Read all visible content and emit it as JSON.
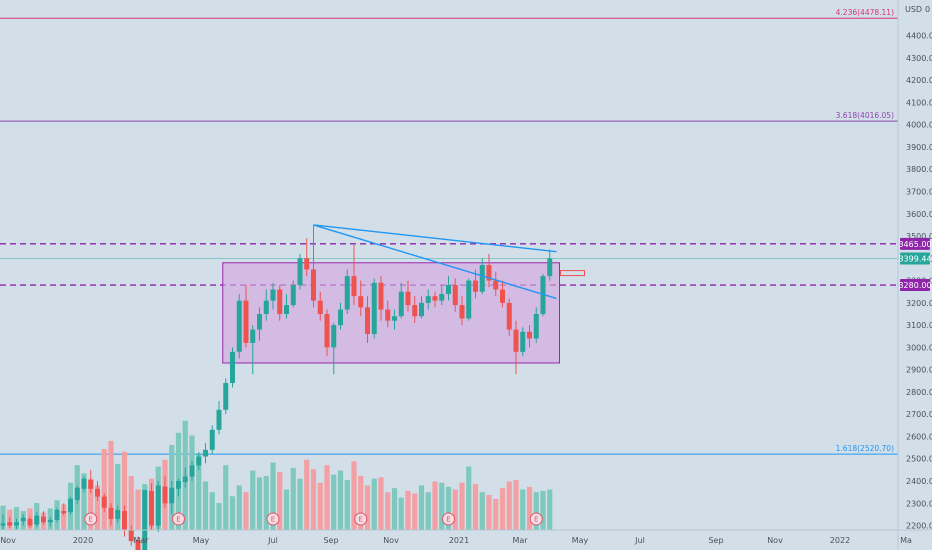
{
  "axis": {
    "currency": "USD",
    "y_ticks": [
      2200,
      2300,
      2400,
      2500,
      2600,
      2700,
      2800,
      2900,
      3000,
      3100,
      3200,
      3300,
      3400,
      3500,
      3600,
      3700,
      3800,
      3900,
      4000,
      4100,
      4200,
      4300,
      4400
    ],
    "x_labels": [
      "Nov",
      "2020",
      "Mar",
      "May",
      "Jul",
      "Sep",
      "Nov",
      "2021",
      "Mar",
      "May",
      "Jul",
      "Sep",
      "Nov",
      "2022",
      "Ma"
    ]
  },
  "colors": {
    "up": "#26a69a",
    "down": "#ef5350",
    "vol_up": "#7fc8bd",
    "vol_down": "#f2a0a4",
    "fib_4236": "#d6357a",
    "fib_3618": "#8e44ad",
    "fib_1618": "#2196f3",
    "level": "#8e24aa",
    "trend": "#2196f3",
    "box_fill": "#d4a8e0",
    "box_stroke": "#9c27b0",
    "price_tag": "#26a69a"
  },
  "chart_data": {
    "type": "candlestick",
    "timeframe": "weekly",
    "ylim": [
      2180,
      4560
    ],
    "candles": [
      {
        "o": 2200,
        "h": 2250,
        "l": 2180,
        "c": 2210
      },
      {
        "o": 2215,
        "h": 2240,
        "l": 2190,
        "c": 2200
      },
      {
        "o": 2200,
        "h": 2230,
        "l": 2185,
        "c": 2215
      },
      {
        "o": 2220,
        "h": 2250,
        "l": 2200,
        "c": 2235
      },
      {
        "o": 2230,
        "h": 2240,
        "l": 2190,
        "c": 2200
      },
      {
        "o": 2205,
        "h": 2260,
        "l": 2195,
        "c": 2245
      },
      {
        "o": 2240,
        "h": 2265,
        "l": 2205,
        "c": 2215
      },
      {
        "o": 2215,
        "h": 2240,
        "l": 2195,
        "c": 2225
      },
      {
        "o": 2225,
        "h": 2280,
        "l": 2215,
        "c": 2270
      },
      {
        "o": 2265,
        "h": 2300,
        "l": 2245,
        "c": 2255
      },
      {
        "o": 2260,
        "h": 2330,
        "l": 2250,
        "c": 2320
      },
      {
        "o": 2315,
        "h": 2380,
        "l": 2295,
        "c": 2370
      },
      {
        "o": 2365,
        "h": 2420,
        "l": 2350,
        "c": 2410
      },
      {
        "o": 2405,
        "h": 2450,
        "l": 2345,
        "c": 2365
      },
      {
        "o": 2365,
        "h": 2400,
        "l": 2310,
        "c": 2330
      },
      {
        "o": 2330,
        "h": 2345,
        "l": 2260,
        "c": 2280
      },
      {
        "o": 2280,
        "h": 2300,
        "l": 2200,
        "c": 2230
      },
      {
        "o": 2230,
        "h": 2290,
        "l": 2210,
        "c": 2270
      },
      {
        "o": 2265,
        "h": 2290,
        "l": 2150,
        "c": 2180
      },
      {
        "o": 2180,
        "h": 2200,
        "l": 2110,
        "c": 2130
      },
      {
        "o": 2135,
        "h": 2150,
        "l": 2050,
        "c": 2080
      },
      {
        "o": 2080,
        "h": 2360,
        "l": 2060,
        "c": 2360
      },
      {
        "o": 2355,
        "h": 2390,
        "l": 2180,
        "c": 2200
      },
      {
        "o": 2200,
        "h": 2400,
        "l": 2170,
        "c": 2380
      },
      {
        "o": 2375,
        "h": 2420,
        "l": 2280,
        "c": 2300
      },
      {
        "o": 2300,
        "h": 2400,
        "l": 2250,
        "c": 2370
      },
      {
        "o": 2365,
        "h": 2410,
        "l": 2330,
        "c": 2400
      },
      {
        "o": 2395,
        "h": 2460,
        "l": 2370,
        "c": 2420
      },
      {
        "o": 2420,
        "h": 2490,
        "l": 2400,
        "c": 2470
      },
      {
        "o": 2470,
        "h": 2530,
        "l": 2450,
        "c": 2510
      },
      {
        "o": 2510,
        "h": 2570,
        "l": 2480,
        "c": 2540
      },
      {
        "o": 2540,
        "h": 2650,
        "l": 2520,
        "c": 2630
      },
      {
        "o": 2630,
        "h": 2760,
        "l": 2610,
        "c": 2720
      },
      {
        "o": 2720,
        "h": 2860,
        "l": 2700,
        "c": 2840
      },
      {
        "o": 2840,
        "h": 3000,
        "l": 2820,
        "c": 2980
      },
      {
        "o": 2980,
        "h": 3240,
        "l": 2950,
        "c": 3210
      },
      {
        "o": 3210,
        "h": 3280,
        "l": 3000,
        "c": 3020
      },
      {
        "o": 3020,
        "h": 3100,
        "l": 2880,
        "c": 3080
      },
      {
        "o": 3080,
        "h": 3180,
        "l": 3030,
        "c": 3150
      },
      {
        "o": 3150,
        "h": 3260,
        "l": 3120,
        "c": 3210
      },
      {
        "o": 3210,
        "h": 3290,
        "l": 3170,
        "c": 3260
      },
      {
        "o": 3260,
        "h": 3280,
        "l": 3120,
        "c": 3150
      },
      {
        "o": 3150,
        "h": 3240,
        "l": 3130,
        "c": 3190
      },
      {
        "o": 3190,
        "h": 3300,
        "l": 3180,
        "c": 3280
      },
      {
        "o": 3280,
        "h": 3420,
        "l": 3260,
        "c": 3400
      },
      {
        "o": 3400,
        "h": 3490,
        "l": 3320,
        "c": 3350
      },
      {
        "o": 3350,
        "h": 3550,
        "l": 3180,
        "c": 3210
      },
      {
        "o": 3210,
        "h": 3250,
        "l": 3120,
        "c": 3150
      },
      {
        "o": 3150,
        "h": 3170,
        "l": 2960,
        "c": 3000
      },
      {
        "o": 3000,
        "h": 3110,
        "l": 2880,
        "c": 3100
      },
      {
        "o": 3100,
        "h": 3200,
        "l": 3080,
        "c": 3170
      },
      {
        "o": 3170,
        "h": 3350,
        "l": 3150,
        "c": 3320
      },
      {
        "o": 3320,
        "h": 3460,
        "l": 3190,
        "c": 3230
      },
      {
        "o": 3230,
        "h": 3300,
        "l": 3140,
        "c": 3180
      },
      {
        "o": 3180,
        "h": 3230,
        "l": 3020,
        "c": 3060
      },
      {
        "o": 3060,
        "h": 3310,
        "l": 3040,
        "c": 3290
      },
      {
        "o": 3290,
        "h": 3320,
        "l": 3120,
        "c": 3170
      },
      {
        "o": 3170,
        "h": 3210,
        "l": 3090,
        "c": 3120
      },
      {
        "o": 3120,
        "h": 3170,
        "l": 3080,
        "c": 3140
      },
      {
        "o": 3140,
        "h": 3290,
        "l": 3130,
        "c": 3250
      },
      {
        "o": 3250,
        "h": 3300,
        "l": 3160,
        "c": 3190
      },
      {
        "o": 3190,
        "h": 3230,
        "l": 3110,
        "c": 3140
      },
      {
        "o": 3140,
        "h": 3230,
        "l": 3130,
        "c": 3200
      },
      {
        "o": 3200,
        "h": 3260,
        "l": 3170,
        "c": 3230
      },
      {
        "o": 3230,
        "h": 3250,
        "l": 3180,
        "c": 3210
      },
      {
        "o": 3210,
        "h": 3280,
        "l": 3190,
        "c": 3240
      },
      {
        "o": 3240,
        "h": 3320,
        "l": 3210,
        "c": 3280
      },
      {
        "o": 3280,
        "h": 3310,
        "l": 3160,
        "c": 3190
      },
      {
        "o": 3190,
        "h": 3230,
        "l": 3100,
        "c": 3130
      },
      {
        "o": 3130,
        "h": 3310,
        "l": 3120,
        "c": 3300
      },
      {
        "o": 3300,
        "h": 3350,
        "l": 3220,
        "c": 3250
      },
      {
        "o": 3250,
        "h": 3400,
        "l": 3240,
        "c": 3370
      },
      {
        "o": 3370,
        "h": 3420,
        "l": 3270,
        "c": 3300
      },
      {
        "o": 3300,
        "h": 3340,
        "l": 3230,
        "c": 3260
      },
      {
        "o": 3260,
        "h": 3300,
        "l": 3180,
        "c": 3200
      },
      {
        "o": 3200,
        "h": 3220,
        "l": 3050,
        "c": 3080
      },
      {
        "o": 3080,
        "h": 3120,
        "l": 2880,
        "c": 2980
      },
      {
        "o": 2980,
        "h": 3090,
        "l": 2960,
        "c": 3070
      },
      {
        "o": 3070,
        "h": 3100,
        "l": 3000,
        "c": 3040
      },
      {
        "o": 3040,
        "h": 3180,
        "l": 3020,
        "c": 3150
      },
      {
        "o": 3150,
        "h": 3330,
        "l": 3140,
        "c": 3320
      },
      {
        "o": 3320,
        "h": 3440,
        "l": 3300,
        "c": 3399.44
      }
    ],
    "volume_max": 100,
    "volume": [
      18,
      15,
      17,
      14,
      16,
      20,
      13,
      16,
      22,
      19,
      35,
      48,
      42,
      38,
      33,
      60,
      66,
      49,
      58,
      40,
      30,
      34,
      38,
      47,
      52,
      63,
      72,
      81,
      70,
      56,
      36,
      28,
      20,
      48,
      25,
      33,
      28,
      44,
      39,
      40,
      50,
      43,
      30,
      46,
      38,
      52,
      45,
      35,
      48,
      41,
      44,
      37,
      51,
      40,
      33,
      38,
      39,
      28,
      31,
      24,
      29,
      27,
      33,
      28,
      36,
      35,
      32,
      30,
      35,
      47,
      34,
      28,
      26,
      23,
      31,
      36,
      37,
      30,
      32,
      28,
      29,
      30
    ],
    "levels": [
      {
        "value": 4478.11,
        "label": "4.236(4478.11)",
        "kind": "fib_4236"
      },
      {
        "value": 4016.05,
        "label": "3.618(4016.05)",
        "kind": "fib_3618"
      },
      {
        "value": 2520.7,
        "label": "1.618(2520.70)",
        "kind": "fib_1618"
      }
    ],
    "dashed_levels": [
      {
        "value": 3465.0,
        "label": "3465.00"
      },
      {
        "value": 3280.0,
        "label": "3280.00"
      }
    ],
    "last_price": {
      "value": 3399.44,
      "label": "3399.44"
    },
    "box": {
      "from_index": 33,
      "to_index": 82,
      "low": 2930,
      "high": 3380
    },
    "trendlines": [
      {
        "x1_index": 46,
        "y1": 3550,
        "x2_index": 82,
        "y2": 3430
      },
      {
        "x1_index": 46,
        "y1": 3550,
        "x2_index": 82,
        "y2": 3220
      }
    ],
    "events": [
      {
        "index": 13,
        "label": "E"
      },
      {
        "index": 26,
        "label": "E"
      },
      {
        "index": 40,
        "label": "E"
      },
      {
        "index": 53,
        "label": "E"
      },
      {
        "index": 66,
        "label": "E"
      },
      {
        "index": 79,
        "label": "E"
      }
    ]
  }
}
